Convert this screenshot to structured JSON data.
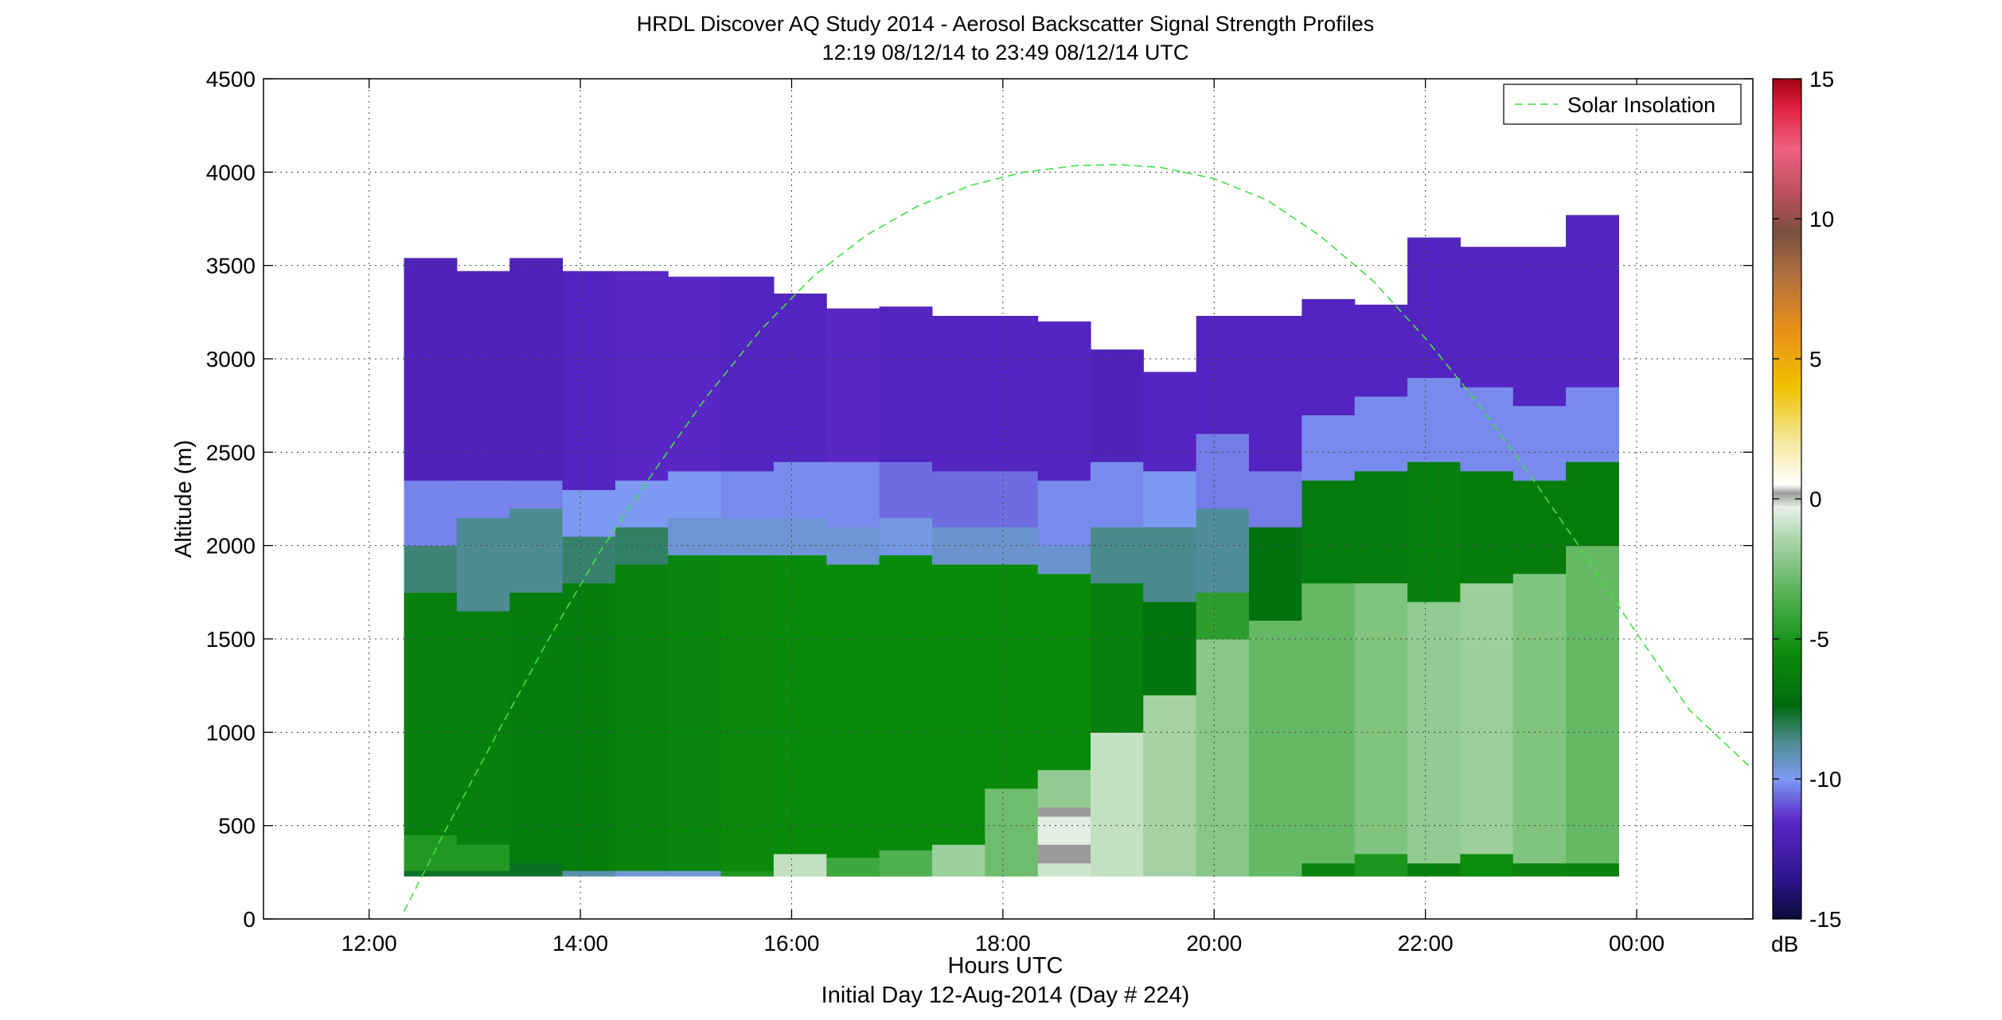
{
  "chart_data": {
    "type": "heatmap",
    "title": "HRDL Discover AQ Study 2014 - Aerosol Backscatter Signal Strength Profiles",
    "subtitle": "12:19 08/12/14 to 23:49 08/12/14  UTC",
    "xlabel": "Hours UTC",
    "xlabel2": "Initial Day 12-Aug-2014 (Day # 224)",
    "ylabel": "Altitude (m)",
    "xlim": [
      11.0,
      25.1
    ],
    "ylim": [
      0,
      4500
    ],
    "x_ticks": [
      12,
      14,
      16,
      18,
      20,
      22,
      24
    ],
    "x_tick_labels": [
      "12:00",
      "14:00",
      "16:00",
      "18:00",
      "20:00",
      "22:00",
      "00:00"
    ],
    "y_ticks": [
      0,
      500,
      1000,
      1500,
      2000,
      2500,
      3000,
      3500,
      4000,
      4500
    ],
    "y_tick_labels": [
      "0",
      "500",
      "1000",
      "1500",
      "2000",
      "2500",
      "3000",
      "3500",
      "4000",
      "4500"
    ],
    "grid": true,
    "colorbar": {
      "range": [
        -15,
        15
      ],
      "ticks": [
        -15,
        -10,
        -5,
        0,
        5,
        10,
        15
      ],
      "tick_labels": [
        "-15",
        "-10",
        "-5",
        "0",
        "5",
        "10",
        "15"
      ],
      "unit_label": "dB",
      "stops": [
        {
          "v": -15,
          "color": "#0b0b3a"
        },
        {
          "v": -13.5,
          "color": "#2e1590"
        },
        {
          "v": -11.5,
          "color": "#5a28c8"
        },
        {
          "v": -10,
          "color": "#7d9af2"
        },
        {
          "v": -8.6,
          "color": "#4a8a8c"
        },
        {
          "v": -7.4,
          "color": "#006b10"
        },
        {
          "v": -5.5,
          "color": "#0b8c0b"
        },
        {
          "v": -3.5,
          "color": "#4fb04f"
        },
        {
          "v": -1.5,
          "color": "#a8d4a8"
        },
        {
          "v": -0.3,
          "color": "#e8f0e8"
        },
        {
          "v": 0.2,
          "color": "#9a9a9a"
        },
        {
          "v": 0.5,
          "color": "#ffffff"
        },
        {
          "v": 2,
          "color": "#f5e9a0"
        },
        {
          "v": 4,
          "color": "#f0c000"
        },
        {
          "v": 6,
          "color": "#e89018"
        },
        {
          "v": 8,
          "color": "#b07040"
        },
        {
          "v": 9.5,
          "color": "#7a5040"
        },
        {
          "v": 11,
          "color": "#c05060"
        },
        {
          "v": 12.5,
          "color": "#f06080"
        },
        {
          "v": 14,
          "color": "#e02040"
        },
        {
          "v": 15,
          "color": "#a00010"
        }
      ]
    },
    "legend": {
      "position": "top-right",
      "entries": [
        "Solar Insolation"
      ]
    },
    "solar_insolation": {
      "color": "#44e044",
      "x_hours": [
        12.33,
        12.7,
        13.2,
        13.7,
        14.2,
        14.7,
        15.2,
        15.7,
        16.2,
        16.7,
        17.2,
        17.7,
        18.2,
        18.7,
        19.1,
        19.5,
        20.0,
        20.5,
        21.0,
        21.5,
        22.0,
        22.5,
        23.0,
        23.5,
        24.0,
        24.5,
        25.1
      ],
      "altitude": [
        40,
        450,
        980,
        1500,
        1980,
        2400,
        2800,
        3150,
        3440,
        3660,
        3820,
        3930,
        4000,
        4035,
        4040,
        4025,
        3965,
        3850,
        3660,
        3420,
        3110,
        2760,
        2370,
        1960,
        1530,
        1120,
        800
      ]
    },
    "profiles": [
      {
        "t0": 12.33,
        "t1": 12.83,
        "top": 3540,
        "bins": [
          [
            230,
            260,
            -7.6
          ],
          [
            260,
            450,
            -4.8
          ],
          [
            450,
            1750,
            -6.2
          ],
          [
            1750,
            2000,
            -8.4
          ],
          [
            2000,
            2350,
            -10.3
          ],
          [
            2350,
            3540,
            -12.0
          ]
        ]
      },
      {
        "t0": 12.83,
        "t1": 13.33,
        "top": 3470,
        "bins": [
          [
            230,
            260,
            -7.6
          ],
          [
            260,
            400,
            -4.8
          ],
          [
            400,
            1650,
            -6.2
          ],
          [
            1650,
            2150,
            -8.7
          ],
          [
            2150,
            2350,
            -10.3
          ],
          [
            2350,
            3470,
            -12.0
          ]
        ]
      },
      {
        "t0": 13.33,
        "t1": 13.83,
        "top": 3540,
        "bins": [
          [
            230,
            300,
            -7.6
          ],
          [
            300,
            1750,
            -6.3
          ],
          [
            1750,
            2200,
            -8.7
          ],
          [
            2200,
            2350,
            -10.3
          ],
          [
            2350,
            3540,
            -12.0
          ]
        ]
      },
      {
        "t0": 13.83,
        "t1": 14.33,
        "top": 3470,
        "bins": [
          [
            230,
            260,
            -9.0
          ],
          [
            260,
            1800,
            -6.3
          ],
          [
            1800,
            2050,
            -8.3
          ],
          [
            2050,
            2300,
            -10.0
          ],
          [
            2300,
            3470,
            -11.8
          ]
        ]
      },
      {
        "t0": 14.33,
        "t1": 14.83,
        "top": 3470,
        "bins": [
          [
            230,
            260,
            -9.6
          ],
          [
            260,
            1900,
            -6.0
          ],
          [
            1900,
            2100,
            -8.2
          ],
          [
            2100,
            2350,
            -10.0
          ],
          [
            2350,
            3470,
            -11.6
          ]
        ]
      },
      {
        "t0": 14.83,
        "t1": 15.33,
        "top": 3440,
        "bins": [
          [
            230,
            260,
            -9.6
          ],
          [
            260,
            1950,
            -5.8
          ],
          [
            1950,
            2150,
            -9.6
          ],
          [
            2150,
            2400,
            -10.0
          ],
          [
            2400,
            3440,
            -11.6
          ]
        ]
      },
      {
        "t0": 15.33,
        "t1": 15.83,
        "top": 3440,
        "bins": [
          [
            230,
            260,
            -5.0
          ],
          [
            260,
            1950,
            -5.7
          ],
          [
            1950,
            2150,
            -9.6
          ],
          [
            2150,
            2400,
            -10.2
          ],
          [
            2400,
            3440,
            -11.8
          ]
        ]
      },
      {
        "t0": 15.83,
        "t1": 16.33,
        "top": 3350,
        "bins": [
          [
            230,
            350,
            -1.0
          ],
          [
            350,
            1950,
            -5.6
          ],
          [
            1950,
            2150,
            -9.6
          ],
          [
            2150,
            2450,
            -10.2
          ],
          [
            2450,
            3350,
            -11.8
          ]
        ]
      },
      {
        "t0": 16.33,
        "t1": 16.83,
        "top": 3270,
        "bins": [
          [
            230,
            330,
            -4.0
          ],
          [
            330,
            1900,
            -5.6
          ],
          [
            1900,
            2100,
            -9.6
          ],
          [
            2100,
            2450,
            -10.2
          ],
          [
            2450,
            3270,
            -11.6
          ]
        ]
      },
      {
        "t0": 16.83,
        "t1": 17.33,
        "top": 3280,
        "bins": [
          [
            230,
            370,
            -3.5
          ],
          [
            370,
            1950,
            -5.6
          ],
          [
            1950,
            2150,
            -9.8
          ],
          [
            2150,
            2450,
            -10.6
          ],
          [
            2450,
            3280,
            -11.8
          ]
        ]
      },
      {
        "t0": 17.33,
        "t1": 17.83,
        "top": 3230,
        "bins": [
          [
            230,
            400,
            -1.8
          ],
          [
            400,
            1900,
            -5.6
          ],
          [
            1900,
            2100,
            -9.5
          ],
          [
            2100,
            2400,
            -10.6
          ],
          [
            2400,
            3230,
            -11.8
          ]
        ]
      },
      {
        "t0": 17.83,
        "t1": 18.33,
        "top": 3230,
        "bins": [
          [
            230,
            700,
            -2.8
          ],
          [
            700,
            1900,
            -5.6
          ],
          [
            1900,
            2100,
            -9.5
          ],
          [
            2100,
            2400,
            -10.6
          ],
          [
            2400,
            3230,
            -11.8
          ]
        ]
      },
      {
        "t0": 18.33,
        "t1": 18.83,
        "top": 3200,
        "bins": [
          [
            230,
            300,
            -0.8
          ],
          [
            300,
            400,
            0.2
          ],
          [
            400,
            550,
            -0.4
          ],
          [
            550,
            600,
            0.2
          ],
          [
            600,
            800,
            -2.0
          ],
          [
            800,
            1850,
            -5.6
          ],
          [
            1850,
            2000,
            -9.5
          ],
          [
            2000,
            2350,
            -10.2
          ],
          [
            2350,
            3200,
            -11.8
          ]
        ]
      },
      {
        "t0": 18.83,
        "t1": 19.33,
        "top": 3050,
        "bins": [
          [
            230,
            1000,
            -1.0
          ],
          [
            1000,
            1800,
            -6.2
          ],
          [
            1800,
            2100,
            -8.6
          ],
          [
            2100,
            2450,
            -10.2
          ],
          [
            2450,
            3050,
            -12.0
          ]
        ]
      },
      {
        "t0": 19.33,
        "t1": 19.83,
        "top": 2930,
        "bins": [
          [
            230,
            1200,
            -1.6
          ],
          [
            1200,
            1700,
            -6.8
          ],
          [
            1700,
            2100,
            -8.6
          ],
          [
            2100,
            2400,
            -10.0
          ],
          [
            2400,
            2930,
            -11.8
          ]
        ]
      },
      {
        "t0": 19.83,
        "t1": 20.33,
        "top": 3230,
        "bins": [
          [
            230,
            1500,
            -2.2
          ],
          [
            1500,
            1750,
            -4.5
          ],
          [
            1750,
            2200,
            -8.8
          ],
          [
            2200,
            2600,
            -10.4
          ],
          [
            2600,
            3230,
            -11.8
          ]
        ]
      },
      {
        "t0": 20.33,
        "t1": 20.83,
        "top": 3230,
        "bins": [
          [
            230,
            1600,
            -3.0
          ],
          [
            1600,
            2100,
            -7.0
          ],
          [
            2100,
            2400,
            -10.4
          ],
          [
            2400,
            3230,
            -11.8
          ]
        ]
      },
      {
        "t0": 20.83,
        "t1": 21.33,
        "top": 3320,
        "bins": [
          [
            230,
            300,
            -5.8
          ],
          [
            300,
            1800,
            -3.0
          ],
          [
            1800,
            2350,
            -6.5
          ],
          [
            2350,
            2700,
            -10.2
          ],
          [
            2700,
            3320,
            -11.8
          ]
        ]
      },
      {
        "t0": 21.33,
        "t1": 21.83,
        "top": 3290,
        "bins": [
          [
            230,
            350,
            -5.0
          ],
          [
            350,
            1800,
            -2.4
          ],
          [
            1800,
            2400,
            -6.5
          ],
          [
            2400,
            2800,
            -10.2
          ],
          [
            2800,
            3290,
            -11.8
          ]
        ]
      },
      {
        "t0": 21.83,
        "t1": 22.33,
        "top": 3650,
        "bins": [
          [
            230,
            300,
            -6.2
          ],
          [
            300,
            1700,
            -2.0
          ],
          [
            1700,
            2450,
            -6.2
          ],
          [
            2450,
            2900,
            -10.2
          ],
          [
            2900,
            3650,
            -11.8
          ]
        ]
      },
      {
        "t0": 22.33,
        "t1": 22.83,
        "top": 3600,
        "bins": [
          [
            230,
            350,
            -5.5
          ],
          [
            350,
            1800,
            -1.8
          ],
          [
            1800,
            2400,
            -6.4
          ],
          [
            2400,
            2850,
            -10.2
          ],
          [
            2850,
            3600,
            -11.8
          ]
        ]
      },
      {
        "t0": 22.83,
        "t1": 23.33,
        "top": 3600,
        "bins": [
          [
            230,
            300,
            -5.8
          ],
          [
            300,
            1850,
            -2.4
          ],
          [
            1850,
            2350,
            -6.4
          ],
          [
            2350,
            2750,
            -10.2
          ],
          [
            2750,
            3600,
            -11.8
          ]
        ]
      },
      {
        "t0": 23.33,
        "t1": 23.83,
        "top": 3770,
        "bins": [
          [
            230,
            300,
            -6.0
          ],
          [
            300,
            2000,
            -3.0
          ],
          [
            2000,
            2450,
            -6.4
          ],
          [
            2450,
            2850,
            -10.2
          ],
          [
            2850,
            3770,
            -11.8
          ]
        ]
      }
    ]
  }
}
